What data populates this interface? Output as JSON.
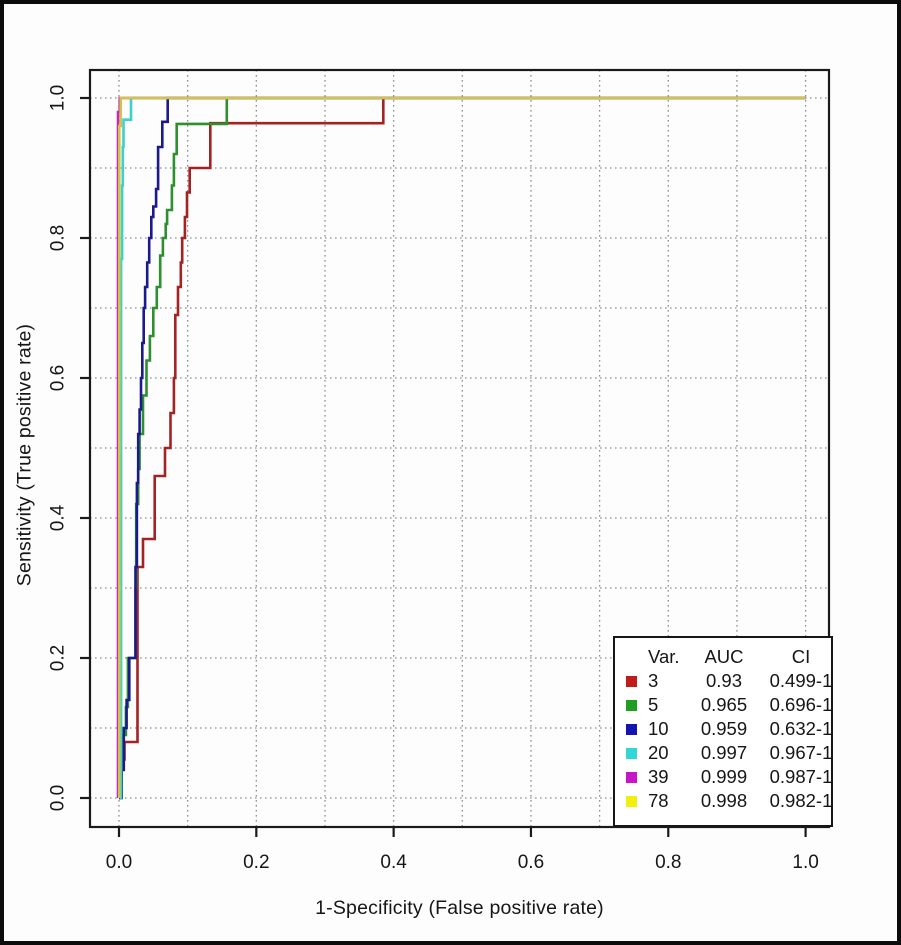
{
  "figure": {
    "background": "#ffffff",
    "frame_color": "#0c0c0c",
    "plot_box_color": "#1a1a1a",
    "gridline_color": "#8f8f8f"
  },
  "axes": {
    "x": {
      "label": "1-Specificity (False positive rate)",
      "ticks": [
        "0.0",
        "0.2",
        "0.4",
        "0.6",
        "0.8",
        "1.0"
      ],
      "tick_values": [
        0,
        0.2,
        0.4,
        0.6,
        0.8,
        1.0
      ],
      "range": [
        0,
        1
      ],
      "grid_step": 0.1
    },
    "y": {
      "label": "Sensitivity (True positive rate)",
      "ticks": [
        "0.0",
        "0.2",
        "0.4",
        "0.6",
        "0.8",
        "1.0"
      ],
      "tick_values": [
        0,
        0.2,
        0.4,
        0.6,
        0.8,
        1.0
      ],
      "range": [
        0,
        1
      ],
      "grid_step": 0.1
    }
  },
  "legend": {
    "headers": [
      "Var.",
      "AUC",
      "CI"
    ],
    "position": "bottom-right"
  },
  "chart_data": {
    "type": "line",
    "subtype": "roc-step-curves",
    "title": "",
    "xlabel": "1-Specificity (False positive rate)",
    "ylabel": "Sensitivity (True positive rate)",
    "xlim": [
      0,
      1
    ],
    "ylim": [
      0,
      1
    ],
    "grid": "dotted every 0.1, both axes",
    "legend_position": "bottom-right",
    "series": [
      {
        "var": "3",
        "auc": "0.93",
        "ci": "0.499-1",
        "swatch": "#bf1b1b",
        "color": "#a32222",
        "points": [
          [
            0,
            0
          ],
          [
            0.002,
            0
          ],
          [
            0.002,
            0.02
          ],
          [
            0.004,
            0.02
          ],
          [
            0.004,
            0.055
          ],
          [
            0.008,
            0.055
          ],
          [
            0.008,
            0.08
          ],
          [
            0.027,
            0.08
          ],
          [
            0.027,
            0.33
          ],
          [
            0.035,
            0.33
          ],
          [
            0.035,
            0.37
          ],
          [
            0.052,
            0.37
          ],
          [
            0.052,
            0.46
          ],
          [
            0.067,
            0.46
          ],
          [
            0.067,
            0.5
          ],
          [
            0.075,
            0.5
          ],
          [
            0.075,
            0.55
          ],
          [
            0.08,
            0.55
          ],
          [
            0.08,
            0.6
          ],
          [
            0.082,
            0.6
          ],
          [
            0.082,
            0.69
          ],
          [
            0.086,
            0.69
          ],
          [
            0.086,
            0.73
          ],
          [
            0.09,
            0.73
          ],
          [
            0.09,
            0.765
          ],
          [
            0.092,
            0.765
          ],
          [
            0.092,
            0.8
          ],
          [
            0.096,
            0.8
          ],
          [
            0.096,
            0.83
          ],
          [
            0.099,
            0.83
          ],
          [
            0.099,
            0.865
          ],
          [
            0.103,
            0.865
          ],
          [
            0.103,
            0.9
          ],
          [
            0.133,
            0.9
          ],
          [
            0.133,
            0.964
          ],
          [
            0.385,
            0.964
          ],
          [
            0.385,
            1
          ],
          [
            1,
            1
          ]
        ]
      },
      {
        "var": "5",
        "auc": "0.965",
        "ci": "0.696-1",
        "swatch": "#1f9e1f",
        "color": "#2d8f2d",
        "points": [
          [
            0,
            0
          ],
          [
            0.003,
            0
          ],
          [
            0.003,
            0.05
          ],
          [
            0.006,
            0.05
          ],
          [
            0.006,
            0.09
          ],
          [
            0.01,
            0.09
          ],
          [
            0.01,
            0.13
          ],
          [
            0.013,
            0.13
          ],
          [
            0.013,
            0.2
          ],
          [
            0.024,
            0.2
          ],
          [
            0.024,
            0.3
          ],
          [
            0.025,
            0.3
          ],
          [
            0.025,
            0.42
          ],
          [
            0.028,
            0.42
          ],
          [
            0.028,
            0.47
          ],
          [
            0.03,
            0.47
          ],
          [
            0.03,
            0.52
          ],
          [
            0.035,
            0.52
          ],
          [
            0.035,
            0.575
          ],
          [
            0.04,
            0.575
          ],
          [
            0.04,
            0.625
          ],
          [
            0.045,
            0.625
          ],
          [
            0.045,
            0.66
          ],
          [
            0.05,
            0.66
          ],
          [
            0.05,
            0.7
          ],
          [
            0.055,
            0.7
          ],
          [
            0.055,
            0.73
          ],
          [
            0.06,
            0.73
          ],
          [
            0.06,
            0.775
          ],
          [
            0.064,
            0.775
          ],
          [
            0.064,
            0.8
          ],
          [
            0.068,
            0.8
          ],
          [
            0.068,
            0.82
          ],
          [
            0.07,
            0.82
          ],
          [
            0.07,
            0.84
          ],
          [
            0.077,
            0.84
          ],
          [
            0.077,
            0.875
          ],
          [
            0.08,
            0.875
          ],
          [
            0.08,
            0.92
          ],
          [
            0.084,
            0.92
          ],
          [
            0.084,
            0.963
          ],
          [
            0.157,
            0.963
          ],
          [
            0.157,
            1
          ],
          [
            1,
            1
          ]
        ]
      },
      {
        "var": "10",
        "auc": "0.959",
        "ci": "0.632-1",
        "swatch": "#1414b2",
        "color": "#1a1a8c",
        "points": [
          [
            0,
            0
          ],
          [
            0.004,
            0
          ],
          [
            0.004,
            0.04
          ],
          [
            0.007,
            0.04
          ],
          [
            0.007,
            0.1
          ],
          [
            0.011,
            0.1
          ],
          [
            0.011,
            0.14
          ],
          [
            0.015,
            0.14
          ],
          [
            0.015,
            0.2
          ],
          [
            0.024,
            0.2
          ],
          [
            0.024,
            0.33
          ],
          [
            0.026,
            0.33
          ],
          [
            0.026,
            0.45
          ],
          [
            0.028,
            0.45
          ],
          [
            0.028,
            0.52
          ],
          [
            0.03,
            0.52
          ],
          [
            0.03,
            0.555
          ],
          [
            0.032,
            0.555
          ],
          [
            0.032,
            0.6
          ],
          [
            0.034,
            0.6
          ],
          [
            0.034,
            0.65
          ],
          [
            0.036,
            0.65
          ],
          [
            0.036,
            0.7
          ],
          [
            0.038,
            0.7
          ],
          [
            0.038,
            0.73
          ],
          [
            0.041,
            0.73
          ],
          [
            0.041,
            0.765
          ],
          [
            0.044,
            0.765
          ],
          [
            0.044,
            0.8
          ],
          [
            0.047,
            0.8
          ],
          [
            0.047,
            0.83
          ],
          [
            0.05,
            0.83
          ],
          [
            0.05,
            0.845
          ],
          [
            0.054,
            0.845
          ],
          [
            0.054,
            0.87
          ],
          [
            0.057,
            0.87
          ],
          [
            0.057,
            0.93
          ],
          [
            0.063,
            0.93
          ],
          [
            0.063,
            0.966
          ],
          [
            0.071,
            0.966
          ],
          [
            0.071,
            1
          ],
          [
            1,
            1
          ]
        ]
      },
      {
        "var": "20",
        "auc": "0.997",
        "ci": "0.967-1",
        "swatch": "#31d6d6",
        "color": "#3ecfcf",
        "points": [
          [
            0.001,
            0
          ],
          [
            0.003,
            0
          ],
          [
            0.003,
            0.77
          ],
          [
            0.0045,
            0.77
          ],
          [
            0.0045,
            0.875
          ],
          [
            0.0055,
            0.875
          ],
          [
            0.0055,
            0.93
          ],
          [
            0.0065,
            0.93
          ],
          [
            0.0065,
            0.969
          ],
          [
            0.0175,
            0.969
          ],
          [
            0.0175,
            1
          ],
          [
            1,
            1
          ]
        ]
      },
      {
        "var": "39",
        "auc": "0.999",
        "ci": "0.987-1",
        "swatch": "#c716c7",
        "color": "#c32ac3",
        "points": [
          [
            -0.0015,
            0
          ],
          [
            -0.0015,
            0.98
          ],
          [
            0.001,
            0.98
          ],
          [
            0.001,
            1
          ],
          [
            1,
            1
          ]
        ]
      },
      {
        "var": "78",
        "auc": "0.998",
        "ci": "0.982-1",
        "swatch": "#f0f00c",
        "color": "#d3c544",
        "points": [
          [
            0.0005,
            0
          ],
          [
            0.0005,
            0.96
          ],
          [
            0.0025,
            0.96
          ],
          [
            0.0025,
            1
          ],
          [
            1,
            1
          ]
        ]
      }
    ]
  }
}
